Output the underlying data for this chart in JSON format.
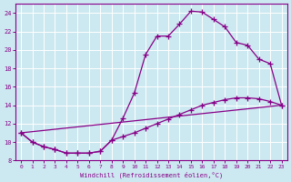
{
  "xlabel": "Windchill (Refroidissement éolien,°C)",
  "bg_color": "#cce8f0",
  "line_color": "#880088",
  "grid_color": "#ffffff",
  "xlim": [
    -0.5,
    23.5
  ],
  "ylim": [
    8,
    25
  ],
  "yticks": [
    8,
    10,
    12,
    14,
    16,
    18,
    20,
    22,
    24
  ],
  "xticks": [
    0,
    1,
    2,
    3,
    4,
    5,
    6,
    7,
    8,
    9,
    10,
    11,
    12,
    13,
    14,
    15,
    16,
    17,
    18,
    19,
    20,
    21,
    22,
    23
  ],
  "line1_x": [
    0,
    1,
    2,
    3,
    4,
    5,
    6,
    7,
    8,
    9,
    10,
    11,
    12,
    13,
    14,
    15,
    16,
    17,
    18,
    19,
    20,
    21,
    22,
    23
  ],
  "line1_y": [
    11.0,
    10.0,
    9.5,
    9.2,
    8.8,
    8.8,
    8.8,
    9.0,
    10.2,
    12.6,
    15.3,
    19.5,
    21.5,
    21.5,
    22.8,
    24.2,
    24.1,
    23.3,
    22.5,
    20.8,
    20.5,
    19.0,
    18.5,
    14.0
  ],
  "line2_x": [
    0,
    1,
    2,
    3,
    4,
    5,
    6,
    7,
    8,
    9,
    10,
    11,
    12,
    13,
    14,
    15,
    16,
    17,
    18,
    19,
    20,
    21,
    22,
    23
  ],
  "line2_y": [
    11.0,
    10.0,
    9.5,
    9.2,
    8.8,
    8.8,
    8.8,
    9.0,
    10.2,
    10.6,
    11.0,
    11.5,
    12.0,
    12.5,
    13.0,
    13.5,
    14.0,
    14.3,
    14.6,
    14.8,
    14.8,
    14.7,
    14.4,
    14.0
  ],
  "line3_x": [
    0,
    23
  ],
  "line3_y": [
    11.0,
    14.0
  ]
}
